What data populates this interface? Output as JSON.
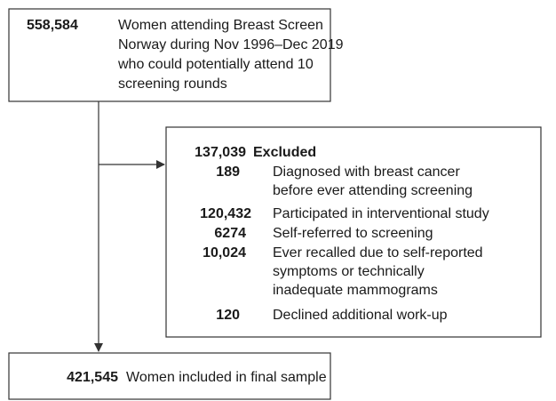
{
  "source": {
    "count": "558,584",
    "lines": [
      "Women attending Breast Screen",
      "Norway during Nov 1996–Dec 2019",
      "who could potentially attend 10",
      "screening rounds"
    ]
  },
  "excluded": {
    "count": "137,039",
    "label": "Excluded",
    "items": [
      {
        "count": "189",
        "lines": [
          "Diagnosed with breast cancer",
          "before ever attending screening"
        ]
      },
      {
        "count": "120,432",
        "lines": [
          "Participated in interventional study"
        ]
      },
      {
        "count": "6274",
        "lines": [
          "Self-referred to screening"
        ]
      },
      {
        "count": "10,024",
        "lines": [
          "Ever recalled due to self-reported",
          "symptoms or technically",
          "inadequate mammograms"
        ]
      },
      {
        "count": "120",
        "lines": [
          "Declined additional work-up"
        ]
      }
    ]
  },
  "included": {
    "count": "421,545",
    "label": "Women included in final sample"
  }
}
